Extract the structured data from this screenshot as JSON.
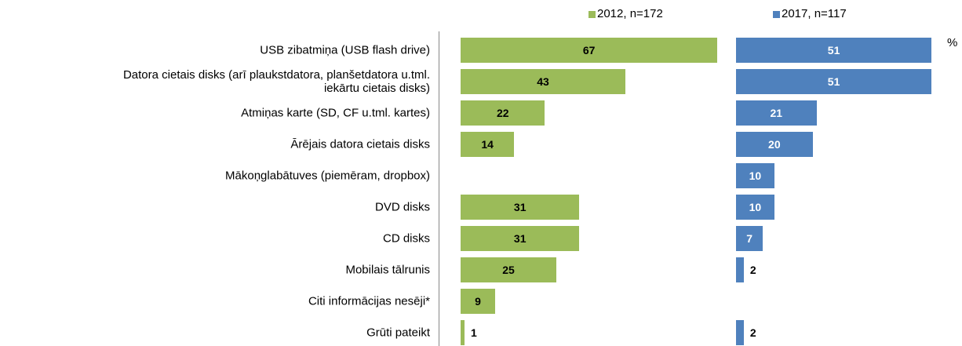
{
  "chart_data": {
    "type": "bar",
    "orientation": "horizontal",
    "unit": "%",
    "categories": [
      "USB zibatmiņa (USB flash drive)",
      "Datora cietais disks (arī plaukstdatora, planšetdatora u.tml.\niekārtu cietais disks)",
      "Atmiņas karte (SD, CF u.tml. kartes)",
      "Ārējais datora cietais disks",
      "Mākoņglabātuves (piemēram, dropbox)",
      "DVD disks",
      "CD disks",
      "Mobilais tālrunis",
      "Citi informācijas nesēji*",
      "Grūti pateikt"
    ],
    "series": [
      {
        "name": "2012, n=172",
        "color": "#9bbb59",
        "label_color": "#000000",
        "values": [
          67,
          43,
          22,
          14,
          null,
          31,
          31,
          25,
          9,
          1
        ]
      },
      {
        "name": "2017, n=117",
        "color": "#4f81bd",
        "label_color": "#ffffff",
        "values": [
          51,
          51,
          21,
          20,
          10,
          10,
          7,
          2,
          null,
          2
        ]
      }
    ],
    "xlim": [
      0,
      70
    ]
  }
}
